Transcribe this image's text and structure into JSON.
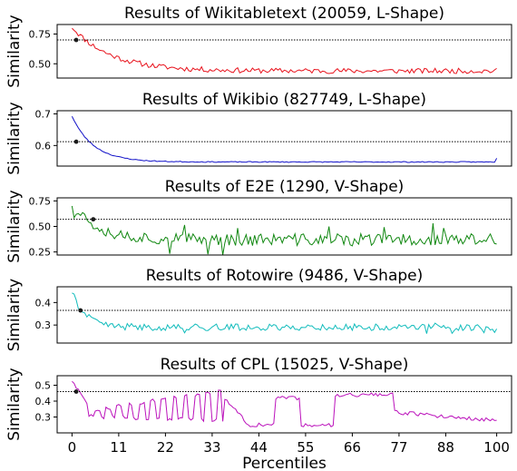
{
  "chart_data": [
    {
      "type": "line",
      "title": "Results of Wikitabletext (20059, L-Shape)",
      "xlabel": "",
      "ylabel": "Similarity",
      "xlim": [
        -3.5,
        103.5
      ],
      "ylim": [
        0.38,
        0.83
      ],
      "yticks": [
        0.5,
        0.75
      ],
      "ytick_labels": [
        "0.50",
        "0.75"
      ],
      "threshold": 0.7,
      "highlight": {
        "x": 1,
        "y": 0.7
      },
      "color": "#e8121c",
      "curve": {
        "start": 0.81,
        "floor": 0.44,
        "decay": 9,
        "noise": 0.022,
        "end_tick": 0.0,
        "kind": "l"
      },
      "seed": 11
    },
    {
      "type": "line",
      "title": "Results of Wikibio (827749, L-Shape)",
      "xlabel": "",
      "ylabel": "Similarity",
      "xlim": [
        -3.5,
        103.5
      ],
      "ylim": [
        0.535,
        0.71
      ],
      "yticks": [
        0.6,
        0.7
      ],
      "ytick_labels": [
        "0.6",
        "0.7"
      ],
      "threshold": 0.612,
      "highlight": {
        "x": 1,
        "y": 0.612
      },
      "color": "#1111c8",
      "curve": {
        "start": 0.693,
        "floor": 0.548,
        "decay": 5,
        "noise": 0.0015,
        "end_tick": 0.012,
        "kind": "l"
      },
      "seed": 23
    },
    {
      "type": "line",
      "title": "Results of E2E (1290, V-Shape)",
      "xlabel": "",
      "ylabel": "Similarity",
      "xlim": [
        -3.5,
        103.5
      ],
      "ylim": [
        0.22,
        0.78
      ],
      "yticks": [
        0.25,
        0.5,
        0.75
      ],
      "ytick_labels": [
        "0.25",
        "0.50",
        "0.75"
      ],
      "threshold": 0.57,
      "highlight": {
        "x": 5,
        "y": 0.57
      },
      "color": "#118811",
      "curve": {
        "start": 0.73,
        "floor": 0.37,
        "decay": 6,
        "noise": 0.06,
        "end_tick": 0.0,
        "kind": "v"
      },
      "seed": 37
    },
    {
      "type": "line",
      "title": "Results of Rotowire (9486, V-Shape)",
      "xlabel": "",
      "ylabel": "Similarity",
      "xlim": [
        -3.5,
        103.5
      ],
      "ylim": [
        0.22,
        0.47
      ],
      "yticks": [
        0.3,
        0.4
      ],
      "ytick_labels": [
        "0.3",
        "0.4"
      ],
      "threshold": 0.365,
      "highlight": {
        "x": 2,
        "y": 0.365
      },
      "color": "#11bcbc",
      "curve": {
        "start": 0.45,
        "floor": 0.29,
        "decay": 3,
        "noise": 0.015,
        "end_tick": 0.0,
        "kind": "v"
      },
      "seed": 41
    },
    {
      "type": "line",
      "title": "Results of CPL (15025, V-Shape)",
      "xlabel": "Percentiles",
      "ylabel": "Similarity",
      "xlim": [
        -3.5,
        103.5
      ],
      "ylim": [
        0.2,
        0.56
      ],
      "yticks": [
        0.3,
        0.4,
        0.5
      ],
      "ytick_labels": [
        "0.3",
        "0.4",
        "0.5"
      ],
      "xticks": [
        0,
        11,
        22,
        33,
        44,
        55,
        66,
        77,
        88,
        100
      ],
      "xtick_labels": [
        "0",
        "11",
        "22",
        "33",
        "44",
        "55",
        "66",
        "77",
        "88",
        "100"
      ],
      "threshold": 0.46,
      "highlight": {
        "x": 1,
        "y": 0.46
      },
      "color": "#bb11bb",
      "curve": {
        "start": 0.53,
        "floor": 0.3,
        "decay": 3,
        "noise": 0.012,
        "end_tick": 0.0,
        "kind": "cpl"
      },
      "seed": 59
    }
  ]
}
